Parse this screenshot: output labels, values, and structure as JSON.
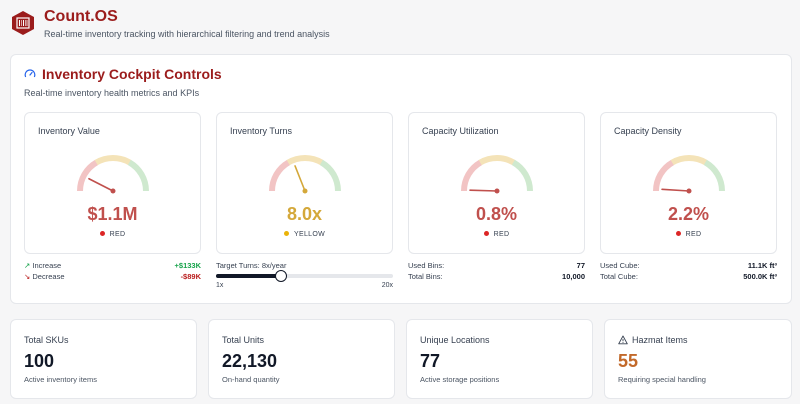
{
  "app": {
    "title": "Count.OS",
    "subtitle": "Real-time inventory tracking with hierarchical filtering and trend analysis",
    "logo_icon": "barcode-box-icon",
    "brand_color": "#9b1c1c"
  },
  "cockpit": {
    "title": "Inventory Cockpit Controls",
    "subtitle": "Real-time inventory health metrics and KPIs",
    "title_icon": "gauge-icon"
  },
  "gauges": [
    {
      "title": "Inventory Value",
      "value": "$1.1M",
      "status": "RED",
      "status_color": "#dc2626",
      "value_color": "#c0504d",
      "needle_level": 0.15
    },
    {
      "title": "Inventory Turns",
      "value": "8.0x",
      "status": "YELLOW",
      "status_color": "#eab308",
      "value_color": "#d4a83a",
      "needle_level": 0.38
    },
    {
      "title": "Capacity Utilization",
      "value": "0.8%",
      "status": "RED",
      "status_color": "#dc2626",
      "value_color": "#c0504d",
      "needle_level": 0.01
    },
    {
      "title": "Capacity Density",
      "value": "2.2%",
      "status": "RED",
      "status_color": "#dc2626",
      "value_color": "#c0504d",
      "needle_level": 0.02
    }
  ],
  "value_details": {
    "increase_label": "Increase",
    "increase_value": "+$133K",
    "decrease_label": "Decrease",
    "decrease_value": "-$89K"
  },
  "turns_details": {
    "target_label": "Target Turns: 8x/year",
    "min_label": "1x",
    "max_label": "20x",
    "slider_fraction": 0.37
  },
  "utilization_details": {
    "used_label": "Used Bins:",
    "used_value": "77",
    "total_label": "Total Bins:",
    "total_value": "10,000"
  },
  "density_details": {
    "used_label": "Used Cube:",
    "used_value": "11.1K ft³",
    "total_label": "Total Cube:",
    "total_value": "500.0K ft³"
  },
  "stats": [
    {
      "label": "Total SKUs",
      "value": "100",
      "note": "Active inventory items",
      "value_color": "#111827"
    },
    {
      "label": "Total Units",
      "value": "22,130",
      "note": "On-hand quantity",
      "value_color": "#111827"
    },
    {
      "label": "Unique Locations",
      "value": "77",
      "note": "Active storage positions",
      "value_color": "#111827"
    },
    {
      "label": "Hazmat Items",
      "value": "55",
      "note": "Requiring special handling",
      "value_color": "#c2692a",
      "icon": "warning-triangle-icon"
    }
  ]
}
